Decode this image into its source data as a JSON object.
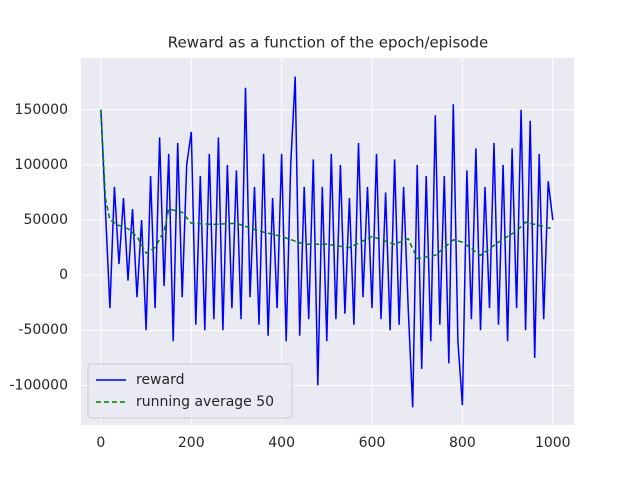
{
  "chart_data": {
    "type": "line",
    "title": "Reward as a function of the epoch/episode",
    "xlim": [
      -44,
      1047
    ],
    "ylim": [
      -136000,
      197000
    ],
    "xticks": [
      0,
      200,
      400,
      600,
      800,
      1000
    ],
    "yticks": [
      -100000,
      -50000,
      0,
      50000,
      100000,
      150000
    ],
    "grid": true,
    "legend": "lower left",
    "series": [
      {
        "name": "reward",
        "color": "#0000ff",
        "linestyle": "solid",
        "x": [
          0,
          10,
          20,
          30,
          40,
          50,
          60,
          70,
          80,
          90,
          100,
          110,
          120,
          130,
          140,
          150,
          160,
          170,
          180,
          190,
          200,
          210,
          220,
          230,
          240,
          250,
          260,
          270,
          280,
          290,
          300,
          310,
          320,
          330,
          340,
          350,
          360,
          370,
          380,
          390,
          400,
          410,
          420,
          430,
          440,
          450,
          460,
          470,
          480,
          490,
          500,
          510,
          520,
          530,
          540,
          550,
          560,
          570,
          580,
          590,
          600,
          610,
          620,
          630,
          640,
          650,
          660,
          670,
          680,
          690,
          700,
          710,
          720,
          730,
          740,
          750,
          760,
          770,
          780,
          790,
          800,
          810,
          820,
          830,
          840,
          850,
          860,
          870,
          880,
          890,
          900,
          910,
          920,
          930,
          940,
          950,
          960,
          970,
          980,
          990,
          1000
        ],
        "values": [
          150000,
          60000,
          -30000,
          80000,
          10000,
          70000,
          -5000,
          60000,
          -20000,
          50000,
          -50000,
          90000,
          -30000,
          125000,
          -10000,
          110000,
          -60000,
          120000,
          -20000,
          100000,
          130000,
          -45000,
          90000,
          -50000,
          110000,
          -40000,
          125000,
          -50000,
          100000,
          -30000,
          95000,
          -40000,
          170000,
          -20000,
          80000,
          -45000,
          110000,
          -55000,
          70000,
          -30000,
          110000,
          -60000,
          100000,
          180000,
          -55000,
          80000,
          -40000,
          105000,
          -100000,
          80000,
          -60000,
          110000,
          -40000,
          100000,
          -35000,
          70000,
          -45000,
          120000,
          -20000,
          80000,
          -30000,
          110000,
          -40000,
          75000,
          -50000,
          105000,
          -45000,
          80000,
          -30000,
          -120000,
          100000,
          -85000,
          90000,
          -60000,
          145000,
          -45000,
          90000,
          -80000,
          155000,
          -60000,
          -118000,
          95000,
          -40000,
          115000,
          -50000,
          80000,
          -30000,
          120000,
          -45000,
          100000,
          -60000,
          115000,
          -30000,
          150000,
          -50000,
          140000,
          -75000,
          110000,
          -40000,
          85000,
          50000
        ]
      },
      {
        "name": "running average 50",
        "color": "#008000",
        "linestyle": "dashed",
        "x": [
          0,
          10,
          20,
          40,
          60,
          80,
          100,
          120,
          140,
          150,
          180,
          200,
          250,
          300,
          350,
          400,
          450,
          500,
          550,
          600,
          650,
          680,
          700,
          740,
          780,
          800,
          840,
          880,
          920,
          940,
          1000
        ],
        "values": [
          150000,
          70000,
          50000,
          45000,
          42000,
          35000,
          20000,
          25000,
          40000,
          60000,
          57000,
          47000,
          46000,
          47000,
          40000,
          35000,
          28000,
          28000,
          25000,
          35000,
          28000,
          33000,
          15000,
          18000,
          32000,
          30000,
          18000,
          30000,
          40000,
          48000,
          42000
        ]
      }
    ]
  }
}
